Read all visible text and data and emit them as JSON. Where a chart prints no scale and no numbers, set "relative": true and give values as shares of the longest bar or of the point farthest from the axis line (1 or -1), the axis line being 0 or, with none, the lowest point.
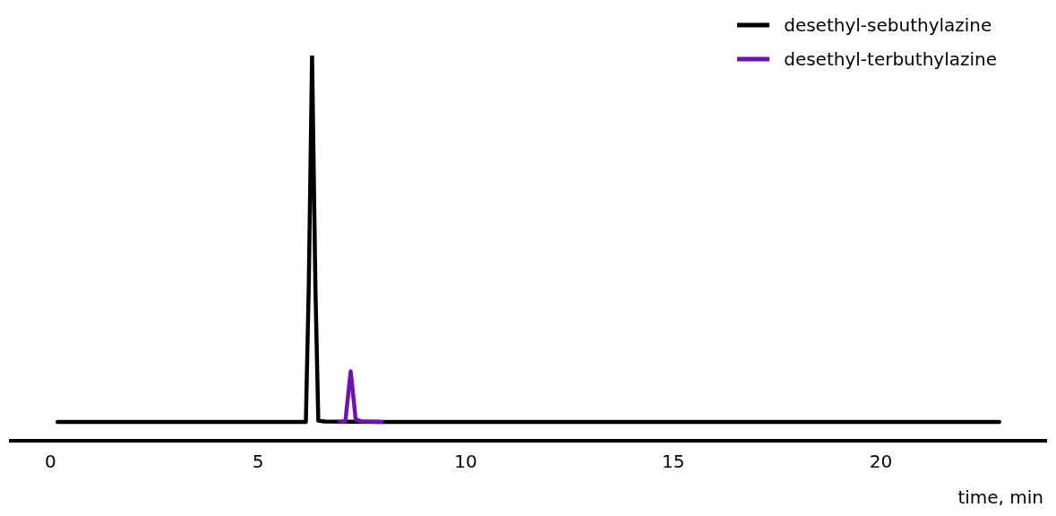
{
  "chart_data": {
    "type": "line",
    "xlabel": "time, min",
    "relative": true,
    "xlim": [
      -1,
      24
    ],
    "xticks": [
      0,
      5,
      10,
      15,
      20
    ],
    "grid": false,
    "legend": "top right",
    "marker": "none",
    "line_style": "solid",
    "series": [
      {
        "name": "desethyl-sebuthylazine",
        "color": "#000000",
        "x": [
          0.17,
          6.15,
          6.22,
          6.3,
          6.38,
          6.45,
          6.6,
          8,
          22.85
        ],
        "values": [
          0.049,
          0.049,
          0.4,
          1,
          0.4,
          0.052,
          0.05,
          0.049,
          0.049
        ]
      },
      {
        "name": "desethyl-terbuthylazine",
        "color": "#7010b8",
        "x": [
          6.97,
          7.1,
          7.23,
          7.35,
          7.5,
          7.98
        ],
        "values": [
          0.049,
          0.05,
          0.18,
          0.055,
          0.05,
          0.049
        ]
      }
    ]
  }
}
